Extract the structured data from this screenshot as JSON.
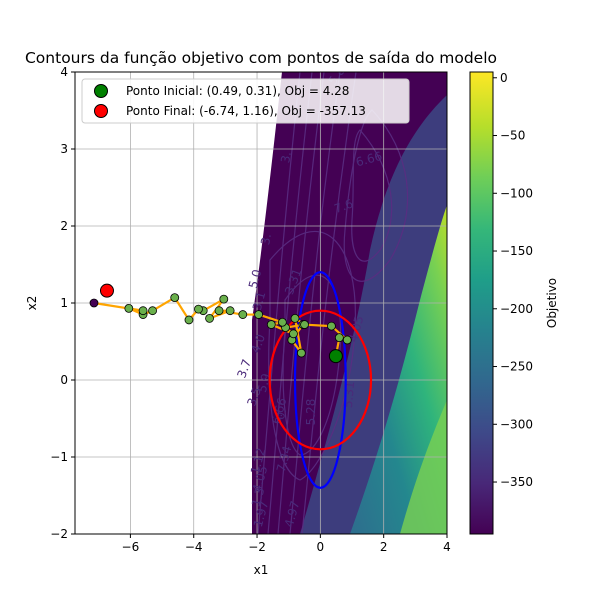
{
  "chart_data": {
    "type": "scatter",
    "title": "Contours da função objetivo com pontos de saída do modelo",
    "xlabel": "x1",
    "ylabel": "x2",
    "xlim": [
      -7.75,
      4
    ],
    "ylim": [
      -2,
      4
    ],
    "xticks": [
      -6,
      -4,
      -2,
      0,
      2,
      4
    ],
    "yticks": [
      -2,
      -1,
      0,
      1,
      2,
      3,
      4
    ],
    "xtick_labels": [
      "−6",
      "−4",
      "−2",
      "0",
      "2",
      "4"
    ],
    "ytick_labels": [
      "−2",
      "−1",
      "0",
      "1",
      "2",
      "3",
      "4"
    ],
    "grid": true,
    "legend_position": "top-left",
    "legend": [
      {
        "label": "Ponto Inicial: (0.49, 0.31), Obj = 4.28",
        "color": "#008000"
      },
      {
        "label": "Ponto Final: (-6.74, 1.16), Obj = -357.13",
        "color": "#ff0000"
      }
    ],
    "start_point": {
      "x": 0.49,
      "y": 0.31
    },
    "end_point": {
      "x": -6.74,
      "y": 1.16
    },
    "path": {
      "color": "#ffa500",
      "points": [
        [
          0.49,
          0.31
        ],
        [
          0.6,
          0.55
        ],
        [
          0.85,
          0.52
        ],
        [
          0.35,
          0.7
        ],
        [
          -0.55,
          0.72
        ],
        [
          -0.9,
          0.52
        ],
        [
          -0.6,
          0.35
        ],
        [
          -0.8,
          0.8
        ],
        [
          -0.5,
          0.72
        ],
        [
          -1.1,
          0.68
        ],
        [
          -0.85,
          0.6
        ],
        [
          -1.55,
          0.72
        ],
        [
          -1.2,
          0.75
        ],
        [
          -1.95,
          0.85
        ],
        [
          -2.45,
          0.85
        ],
        [
          -3.2,
          0.9
        ],
        [
          -2.85,
          0.9
        ],
        [
          -3.5,
          0.8
        ],
        [
          -3.05,
          1.05
        ],
        [
          -3.7,
          0.9
        ],
        [
          -3.85,
          0.92
        ],
        [
          -4.15,
          0.78
        ],
        [
          -4.6,
          1.07
        ],
        [
          -5.3,
          0.9
        ],
        [
          -5.6,
          0.85
        ],
        [
          -6.05,
          0.93
        ],
        [
          -5.6,
          0.9
        ],
        [
          -7.15,
          1.0
        ]
      ]
    },
    "ellipses": [
      {
        "color": "#0000ff",
        "center": [
          0,
          0
        ],
        "rx": 0.8,
        "ry": 1.4
      },
      {
        "color": "#ff0000",
        "center": [
          0,
          0
        ],
        "rx": 1.6,
        "ry": 0.9
      }
    ],
    "contour_labels": [
      "5.8",
      "6.66",
      "3.",
      "3.31",
      "5.0",
      "3.",
      "4.0",
      "3.7",
      "3.5",
      "3.1",
      "6.66",
      "7.34",
      "5.28",
      "4.97",
      "5.31",
      "4.05",
      "0.",
      "1.97",
      "1.3",
      "4.05",
      "1.12",
      "5.9",
      "7.6"
    ],
    "colorbar": {
      "label": "Objetivo",
      "range": [
        -395,
        5
      ],
      "ticks": [
        0,
        -50,
        -100,
        -150,
        -200,
        -250,
        -300,
        -350
      ],
      "tick_labels": [
        "0",
        "−50",
        "−100",
        "−150",
        "−200",
        "−250",
        "−300",
        "−350"
      ],
      "colormap": [
        "#440154",
        "#482878",
        "#3e4989",
        "#31688e",
        "#26828e",
        "#1f9e89",
        "#35b779",
        "#6ece58",
        "#b5de2b",
        "#fde725"
      ]
    }
  }
}
